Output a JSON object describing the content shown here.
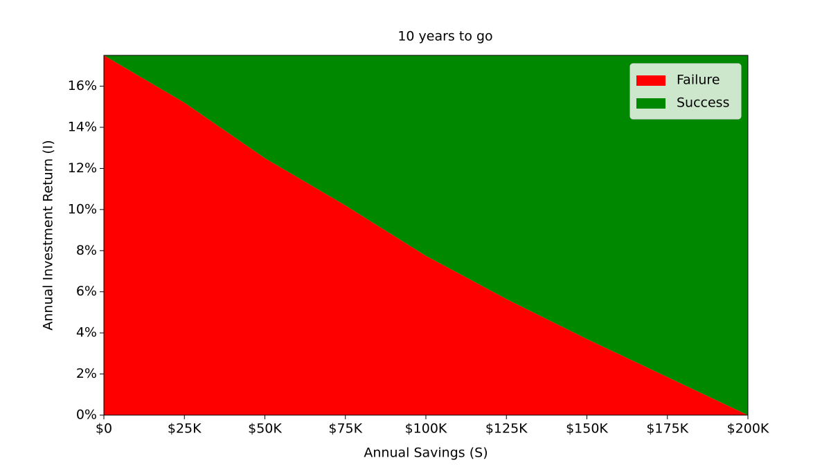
{
  "chart_data": {
    "type": "area",
    "title": "10 years to go",
    "xlabel": "Annual Savings (S)",
    "ylabel": "Annual Investment Return (I)",
    "x": [
      0,
      25000,
      50000,
      75000,
      100000,
      125000,
      150000,
      175000,
      200000
    ],
    "series": [
      {
        "name": "Failure",
        "color": "#ff0000",
        "values": [
          17.5,
          15.2,
          12.5,
          10.2,
          7.75,
          5.65,
          3.7,
          1.85,
          0
        ]
      },
      {
        "name": "Success",
        "color": "#008800",
        "values": [
          0,
          2.3,
          5.0,
          7.3,
          9.75,
          11.85,
          13.8,
          15.65,
          17.5
        ]
      }
    ],
    "stacked": true,
    "xlim": [
      0,
      200000
    ],
    "xticks": [
      {
        "value": 0,
        "label": "$0"
      },
      {
        "value": 25000,
        "label": "$25K"
      },
      {
        "value": 50000,
        "label": "$50K"
      },
      {
        "value": 75000,
        "label": "$75K"
      },
      {
        "value": 100000,
        "label": "$100K"
      },
      {
        "value": 125000,
        "label": "$125K"
      },
      {
        "value": 150000,
        "label": "$150K"
      },
      {
        "value": 175000,
        "label": "$175K"
      },
      {
        "value": 200000,
        "label": "$200K"
      }
    ],
    "ylim": [
      0,
      17.5
    ],
    "yticks": [
      {
        "value": 0,
        "label": "0%"
      },
      {
        "value": 2,
        "label": "2%"
      },
      {
        "value": 4,
        "label": "4%"
      },
      {
        "value": 6,
        "label": "6%"
      },
      {
        "value": 8,
        "label": "8%"
      },
      {
        "value": 10,
        "label": "10%"
      },
      {
        "value": 12,
        "label": "12%"
      },
      {
        "value": 14,
        "label": "14%"
      },
      {
        "value": 16,
        "label": "16%"
      }
    ],
    "legend": "upper right"
  }
}
